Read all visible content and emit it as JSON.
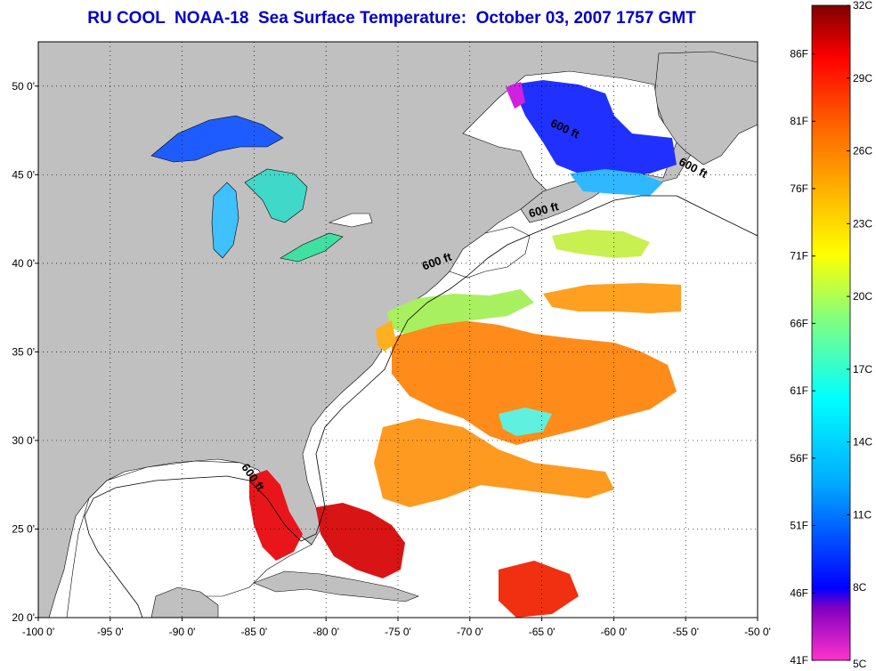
{
  "title": "RU COOL  NOAA-18  Sea Surface Temperature:  October 03, 2007 1757 GMT",
  "map": {
    "lon_range": [
      -100,
      -50
    ],
    "lat_range": [
      20,
      52.5
    ],
    "x_ticks": [
      "-100 0'",
      "-95 0'",
      "-90 0'",
      "-85 0'",
      "-80 0'",
      "-75 0'",
      "-70 0'",
      "-65 0'",
      "-60 0'",
      "-55 0'",
      "-50 0'"
    ],
    "y_ticks": [
      "50 0'",
      "45 0'",
      "40 0'",
      "35 0'",
      "30 0'",
      "25 0'",
      "20 0'"
    ],
    "grid": "dotted",
    "land_color": "#c0c0c0",
    "no_data_color": "#ffffff",
    "contour_labels": [
      {
        "text": "600 ft",
        "lon": -63.5,
        "lat": 47.4,
        "rotate": 25
      },
      {
        "text": "600 ft",
        "lon": -54.6,
        "lat": 45.2,
        "rotate": 28
      },
      {
        "text": "600 ft",
        "lon": -64.8,
        "lat": 42.8,
        "rotate": -15
      },
      {
        "text": "600 ft",
        "lon": -72.2,
        "lat": 39.9,
        "rotate": -20
      },
      {
        "text": "600 ft",
        "lon": -85.3,
        "lat": 27.8,
        "rotate": 55
      }
    ]
  },
  "colorbar": {
    "c_labels": [
      "32C",
      "29C",
      "26C",
      "23C",
      "20C",
      "17C",
      "14C",
      "11C",
      "8C",
      "5C"
    ],
    "f_labels": [
      "86F",
      "81F",
      "76F",
      "71F",
      "66F",
      "61F",
      "56F",
      "51F",
      "46F",
      "41F"
    ],
    "range_c": [
      5,
      32
    ],
    "colors": [
      "#800000",
      "#ff0000",
      "#ff8000",
      "#ffd700",
      "#ffff00",
      "#80ff00",
      "#00ffff",
      "#0080ff",
      "#0000ff",
      "#8000c0",
      "#ff00ff"
    ]
  }
}
